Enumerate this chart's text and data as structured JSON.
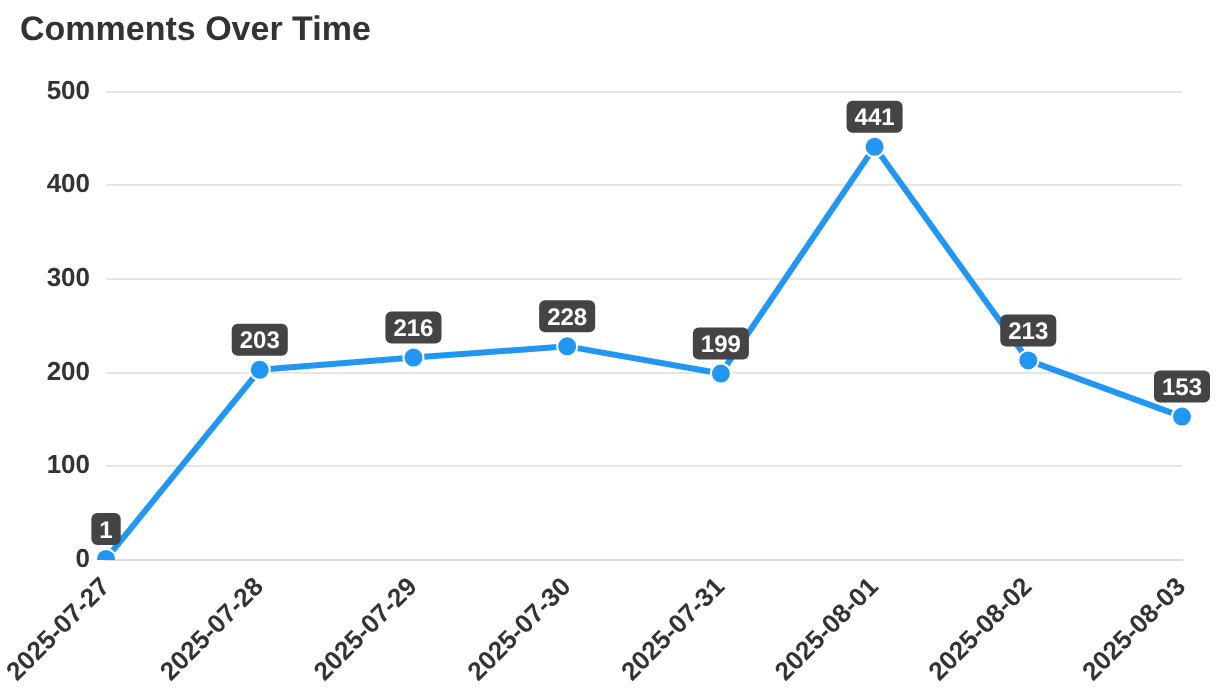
{
  "chart_data": {
    "type": "line",
    "title": "Comments Over Time",
    "categories": [
      "2025-07-27",
      "2025-07-28",
      "2025-07-29",
      "2025-07-30",
      "2025-07-31",
      "2025-08-01",
      "2025-08-02",
      "2025-08-03"
    ],
    "series": [
      {
        "color": "#2196f3",
        "values": [
          1,
          203,
          216,
          228,
          199,
          441,
          213,
          153
        ]
      }
    ],
    "ylim": [
      0,
      500
    ],
    "yticks": [
      0,
      100,
      200,
      300,
      400,
      500
    ],
    "grid": "y",
    "legend": false,
    "marker": "circle",
    "line_style": "solid",
    "data_labels": true
  }
}
